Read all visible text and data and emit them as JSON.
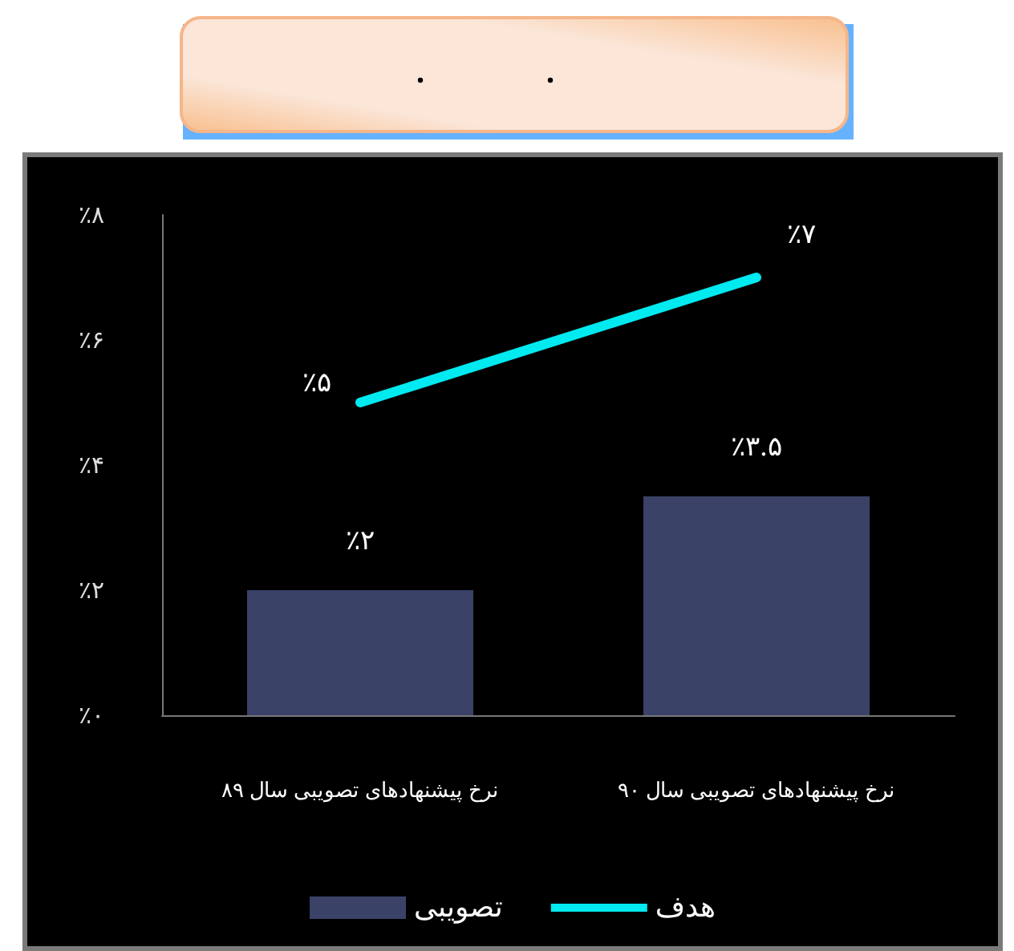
{
  "chart_data": {
    "type": "bar",
    "categories": [
      "نرخ پیشنهادهای تصویبی سال ۸۹",
      "نرخ پیشنهادهای تصویبی سال ۹۰"
    ],
    "series": [
      {
        "name": "تصویبی",
        "color": "#3b4268",
        "values": [
          2,
          3.5
        ],
        "value_labels": [
          "٪۲",
          "٪۳.۵"
        ]
      },
      {
        "name": "هدف",
        "type": "line",
        "color": "#00eaf0",
        "values": [
          5,
          7
        ],
        "value_labels": [
          "٪۵",
          "٪۷"
        ]
      }
    ],
    "ylim": [
      0,
      8
    ],
    "yticks": [
      {
        "value": 0,
        "label": "٪۰"
      },
      {
        "value": 2,
        "label": "٪۲"
      },
      {
        "value": 4,
        "label": "٪۴"
      },
      {
        "value": 6,
        "label": "٪۶"
      },
      {
        "value": 8,
        "label": "٪۸"
      }
    ],
    "grid": false,
    "legend": "bottom",
    "marker": "none",
    "line_style": "solid"
  }
}
